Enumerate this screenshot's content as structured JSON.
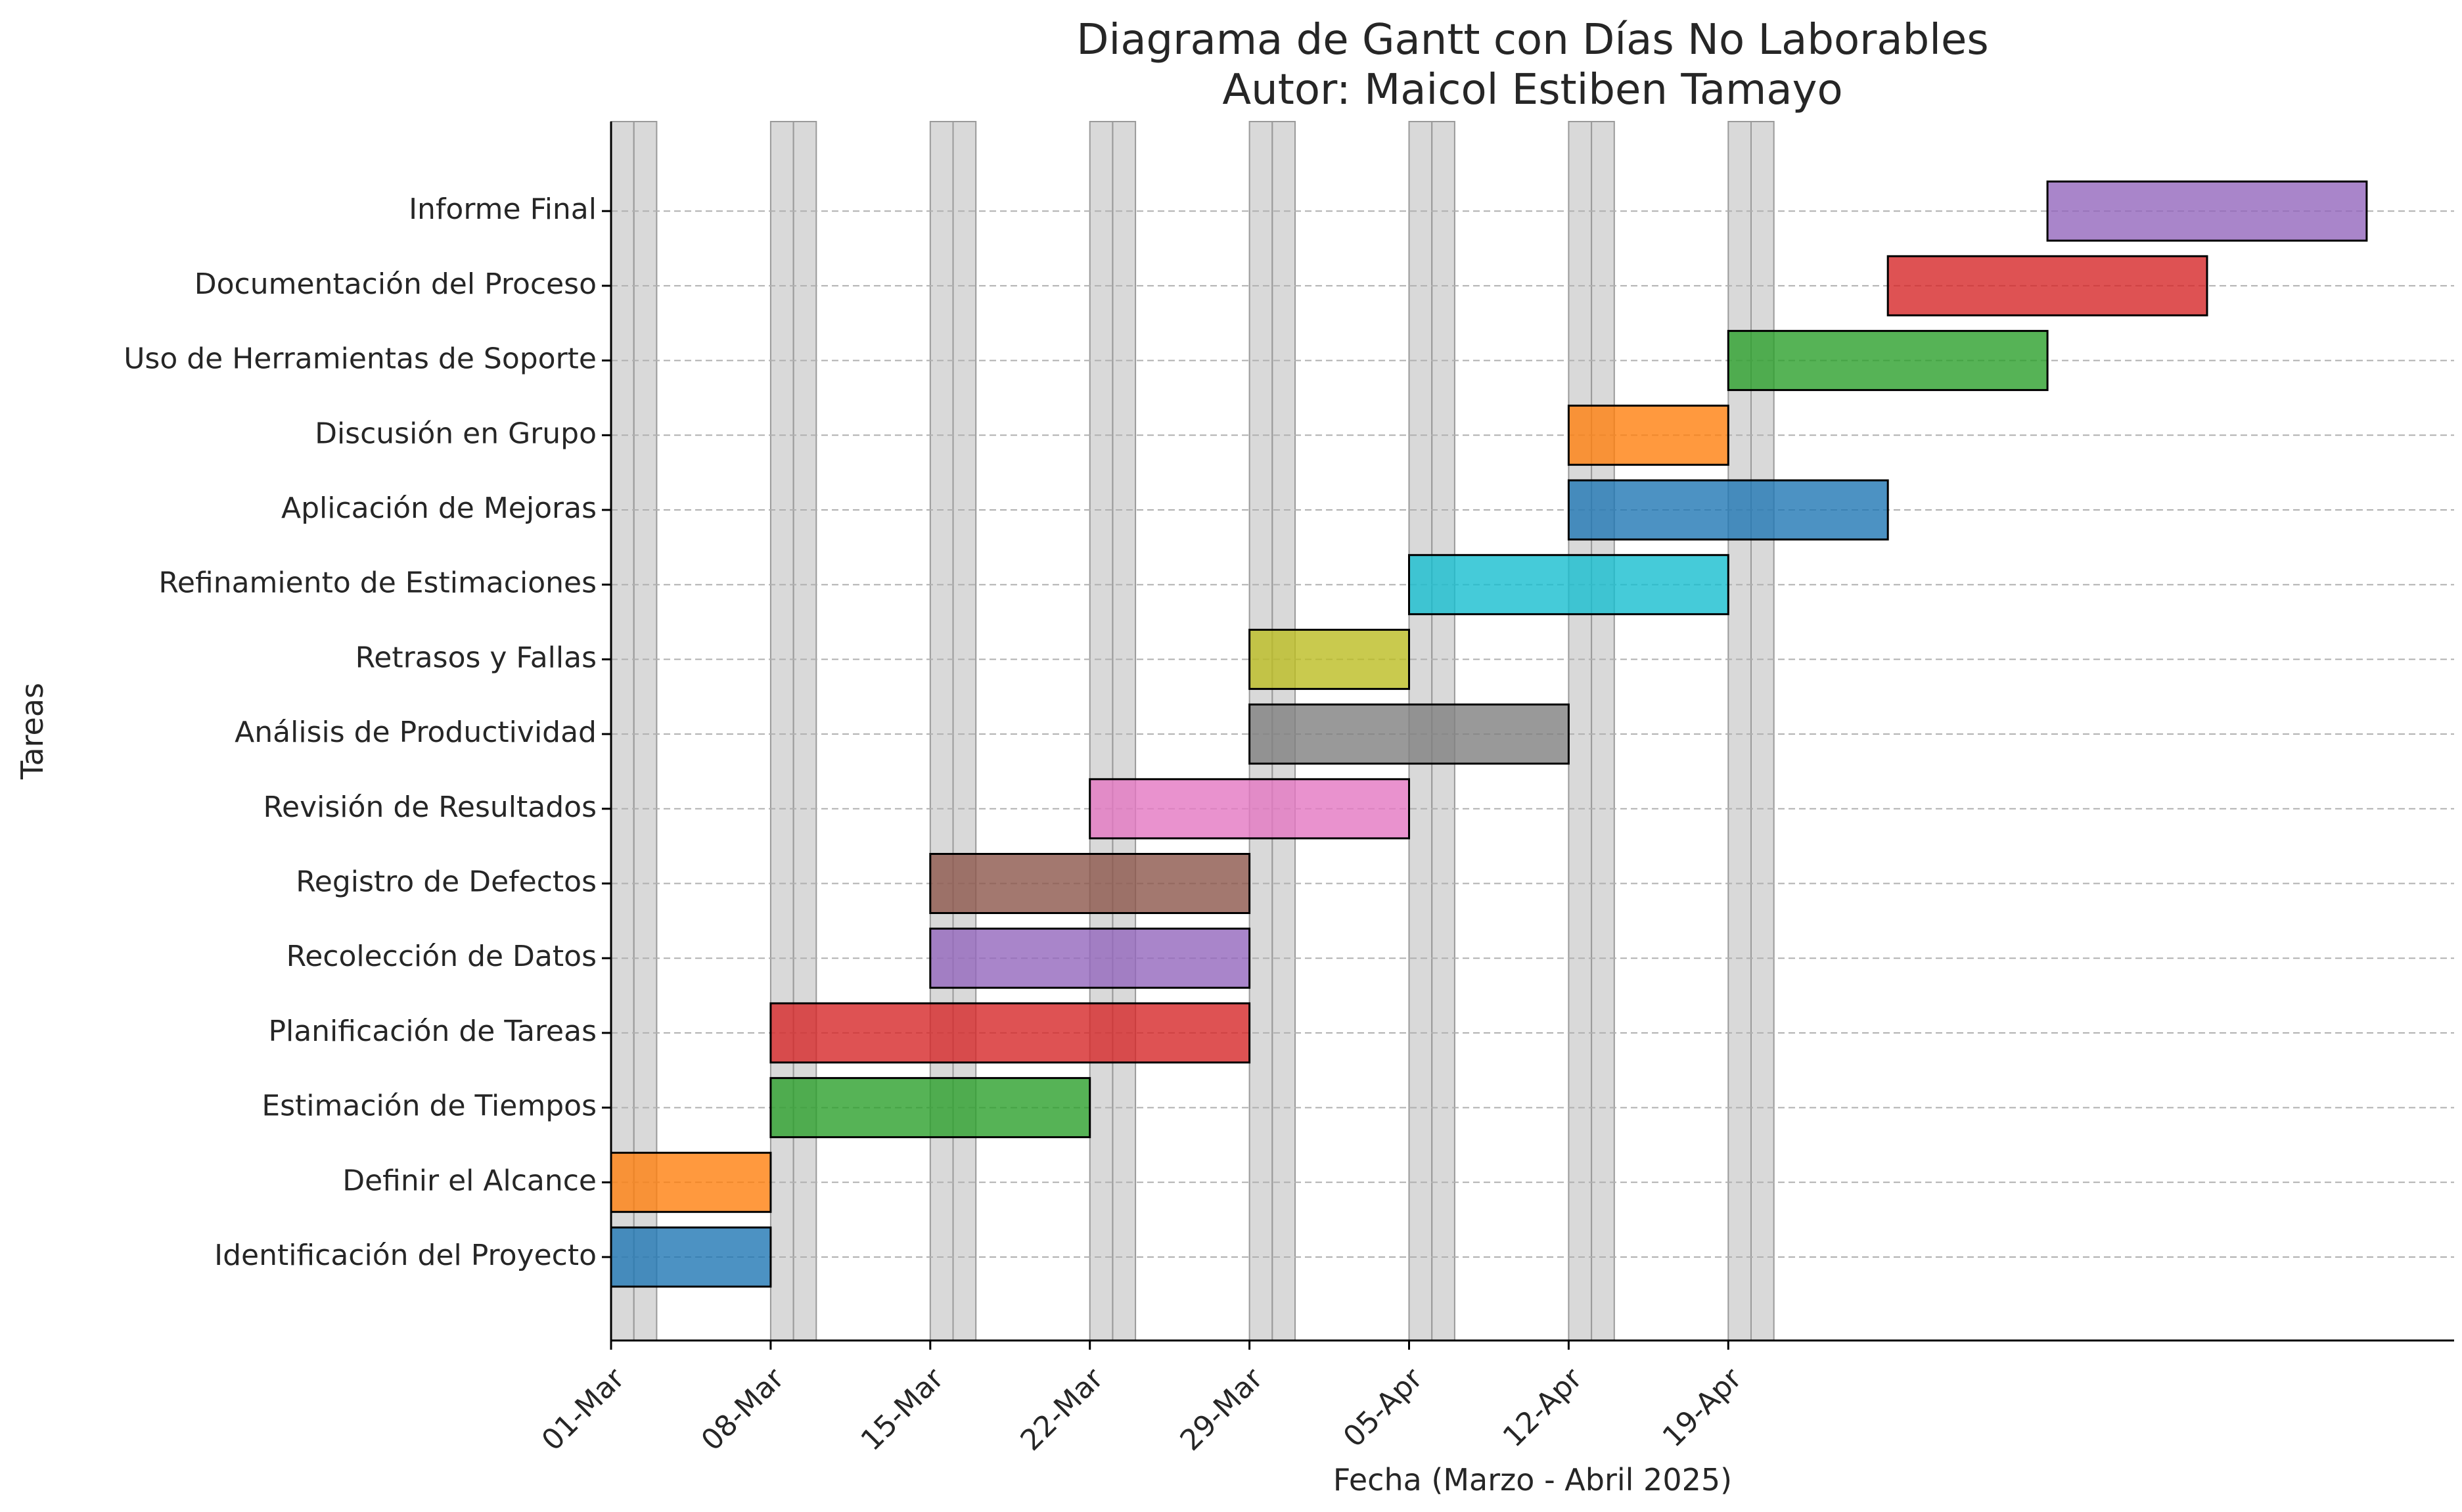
{
  "chart_data": {
    "type": "gantt",
    "title_line1": "Diagrama de Gantt con Días No Laborables",
    "title_line2": "Autor: Maicol Estiben Tamayo",
    "xlabel": "Fecha (Marzo - Abril 2025)",
    "ylabel": "Tareas",
    "x_range": [
      "2025-03-01",
      "2025-04-28"
    ],
    "x_ticks": [
      {
        "date": "2025-03-01",
        "label": "01-Mar"
      },
      {
        "date": "2025-03-08",
        "label": "08-Mar"
      },
      {
        "date": "2025-03-15",
        "label": "15-Mar"
      },
      {
        "date": "2025-03-22",
        "label": "22-Mar"
      },
      {
        "date": "2025-03-29",
        "label": "29-Mar"
      },
      {
        "date": "2025-04-05",
        "label": "05-Apr"
      },
      {
        "date": "2025-04-12",
        "label": "12-Apr"
      },
      {
        "date": "2025-04-19",
        "label": "19-Apr"
      }
    ],
    "non_working_days": [
      "2025-03-01",
      "2025-03-02",
      "2025-03-08",
      "2025-03-09",
      "2025-03-15",
      "2025-03-16",
      "2025-03-22",
      "2025-03-23",
      "2025-03-29",
      "2025-03-30",
      "2025-04-05",
      "2025-04-06",
      "2025-04-12",
      "2025-04-13",
      "2025-04-19",
      "2025-04-20"
    ],
    "non_working_color": "#bfbfbf",
    "grid": "horizontal dashed",
    "tasks": [
      {
        "name": "Identificación del Proyecto",
        "start": "2025-03-01",
        "end": "2025-03-08",
        "color": "#1f77b4"
      },
      {
        "name": "Definir el Alcance",
        "start": "2025-03-01",
        "end": "2025-03-08",
        "color": "#ff7f0e"
      },
      {
        "name": "Estimación de Tiempos",
        "start": "2025-03-08",
        "end": "2025-03-22",
        "color": "#2ca02c"
      },
      {
        "name": "Planificación de Tareas",
        "start": "2025-03-08",
        "end": "2025-03-29",
        "color": "#d62728"
      },
      {
        "name": "Recolección de Datos",
        "start": "2025-03-15",
        "end": "2025-03-29",
        "color": "#9467bd"
      },
      {
        "name": "Registro de Defectos",
        "start": "2025-03-15",
        "end": "2025-03-29",
        "color": "#8c564b"
      },
      {
        "name": "Revisión de Resultados",
        "start": "2025-03-22",
        "end": "2025-04-05",
        "color": "#e377c2"
      },
      {
        "name": "Análisis de Productividad",
        "start": "2025-03-29",
        "end": "2025-04-12",
        "color": "#7f7f7f"
      },
      {
        "name": "Retrasos y Fallas",
        "start": "2025-03-29",
        "end": "2025-04-05",
        "color": "#bcbd22"
      },
      {
        "name": "Refinamiento de Estimaciones",
        "start": "2025-04-05",
        "end": "2025-04-19",
        "color": "#17becf"
      },
      {
        "name": "Aplicación de Mejoras",
        "start": "2025-04-12",
        "end": "2025-04-26",
        "color": "#1f77b4"
      },
      {
        "name": "Discusión en Grupo",
        "start": "2025-04-12",
        "end": "2025-04-19",
        "color": "#ff7f0e"
      },
      {
        "name": "Uso de Herramientas de Soporte",
        "start": "2025-04-19",
        "end": "2025-05-03",
        "color": "#2ca02c"
      },
      {
        "name": "Documentación del Proceso",
        "start": "2025-04-26",
        "end": "2025-05-10",
        "color": "#d62728"
      },
      {
        "name": "Informe Final",
        "start": "2025-05-03",
        "end": "2025-05-17",
        "color": "#9467bd"
      }
    ]
  }
}
